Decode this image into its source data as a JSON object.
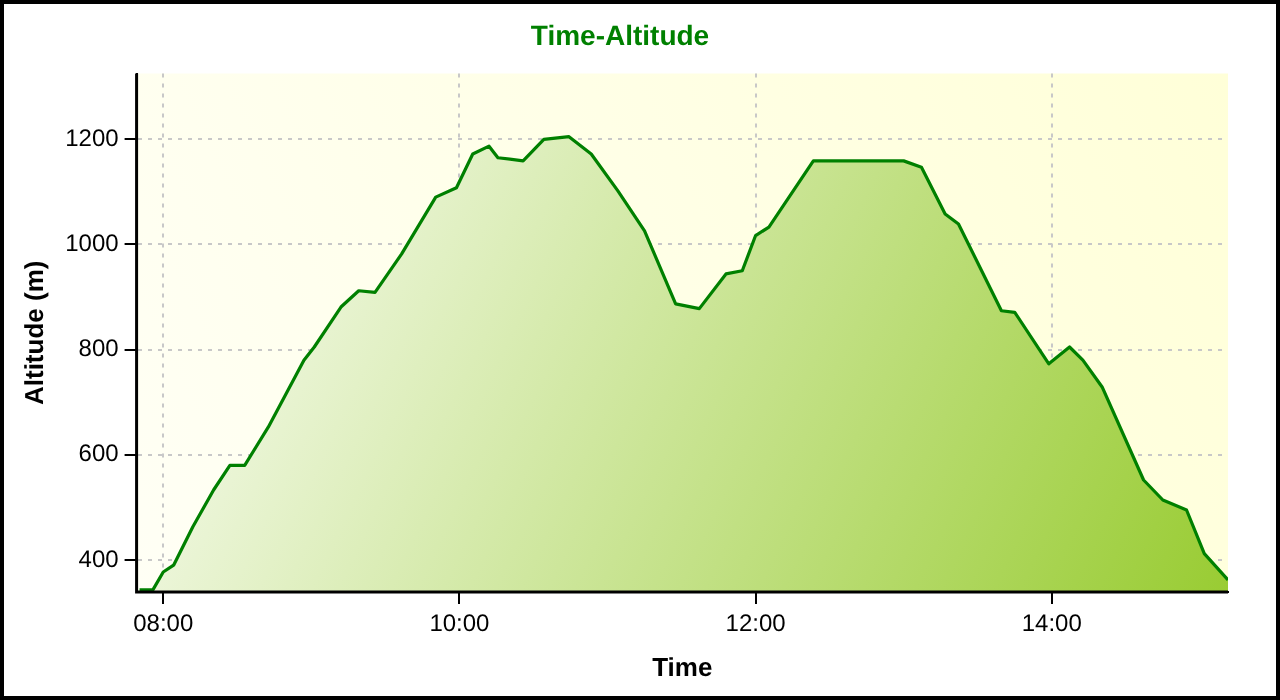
{
  "chart_data": {
    "type": "area",
    "title": "Time-Altitude",
    "xlabel": "Time",
    "ylabel": "Altitude (m)",
    "grid": true,
    "legend": false,
    "marker": "none",
    "line_style": "solid",
    "xlim": [
      7.82,
      15.19
    ],
    "xticks": [
      {
        "value": 8,
        "label": "08:00"
      },
      {
        "value": 10,
        "label": "10:00"
      },
      {
        "value": 12,
        "label": "12:00"
      },
      {
        "value": 14,
        "label": "14:00"
      }
    ],
    "ylim": [
      339,
      1325
    ],
    "yticks": [
      400,
      600,
      800,
      1000,
      1200
    ],
    "series": [
      {
        "color": "#008000",
        "x": [
          7.84,
          7.93,
          8.0,
          8.07,
          8.2,
          8.34,
          8.45,
          8.55,
          8.71,
          8.95,
          9.02,
          9.2,
          9.32,
          9.43,
          9.61,
          9.84,
          9.98,
          10.09,
          10.2,
          10.26,
          10.43,
          10.57,
          10.74,
          10.89,
          11.07,
          11.25,
          11.46,
          11.62,
          11.8,
          11.91,
          12.0,
          12.09,
          12.39,
          13.0,
          13.12,
          13.28,
          13.37,
          13.66,
          13.75,
          13.98,
          14.12,
          14.21,
          14.34,
          14.62,
          14.75,
          14.91,
          15.03,
          15.19
        ],
        "values": [
          343,
          343,
          377,
          390,
          463,
          533,
          580,
          580,
          653,
          780,
          805,
          881,
          912,
          909,
          982,
          1090,
          1108,
          1172,
          1187,
          1165,
          1159,
          1200,
          1205,
          1172,
          1102,
          1026,
          887,
          878,
          944,
          950,
          1017,
          1033,
          1159,
          1159,
          1147,
          1058,
          1039,
          874,
          871,
          773,
          805,
          780,
          729,
          552,
          514,
          495,
          412,
          362
        ]
      }
    ]
  }
}
